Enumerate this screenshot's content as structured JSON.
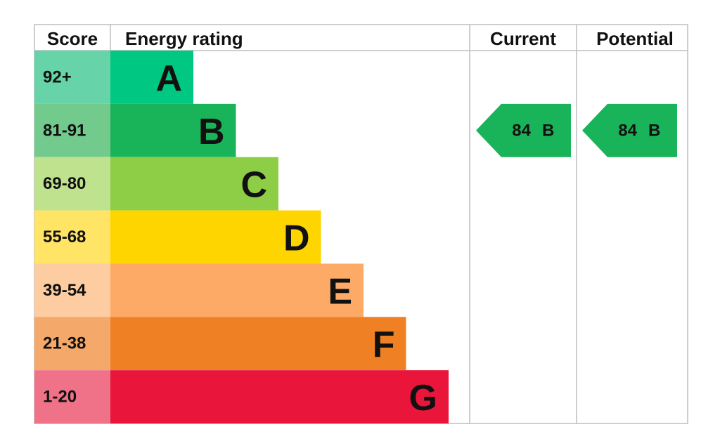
{
  "header": {
    "score": "Score",
    "rating": "Energy rating",
    "current": "Current",
    "potential": "Potential"
  },
  "bands": [
    {
      "score": "92+",
      "letter": "A",
      "color": "#00c781",
      "score_color": "#66d3a8"
    },
    {
      "score": "81-91",
      "letter": "B",
      "color": "#19b459",
      "score_color": "#73ca8d"
    },
    {
      "score": "69-80",
      "letter": "C",
      "color": "#8dce46",
      "score_color": "#bfe28f"
    },
    {
      "score": "55-68",
      "letter": "D",
      "color": "#ffd500",
      "score_color": "#ffe466"
    },
    {
      "score": "39-54",
      "letter": "E",
      "color": "#fcaa65",
      "score_color": "#fdcca0"
    },
    {
      "score": "21-38",
      "letter": "F",
      "color": "#ef8023",
      "score_color": "#f4a96b"
    },
    {
      "score": "1-20",
      "letter": "G",
      "color": "#e9153b",
      "score_color": "#f07288"
    }
  ],
  "current": {
    "value": "84",
    "letter": "B",
    "band": 1
  },
  "potential": {
    "value": "84",
    "letter": "B",
    "band": 1
  }
}
